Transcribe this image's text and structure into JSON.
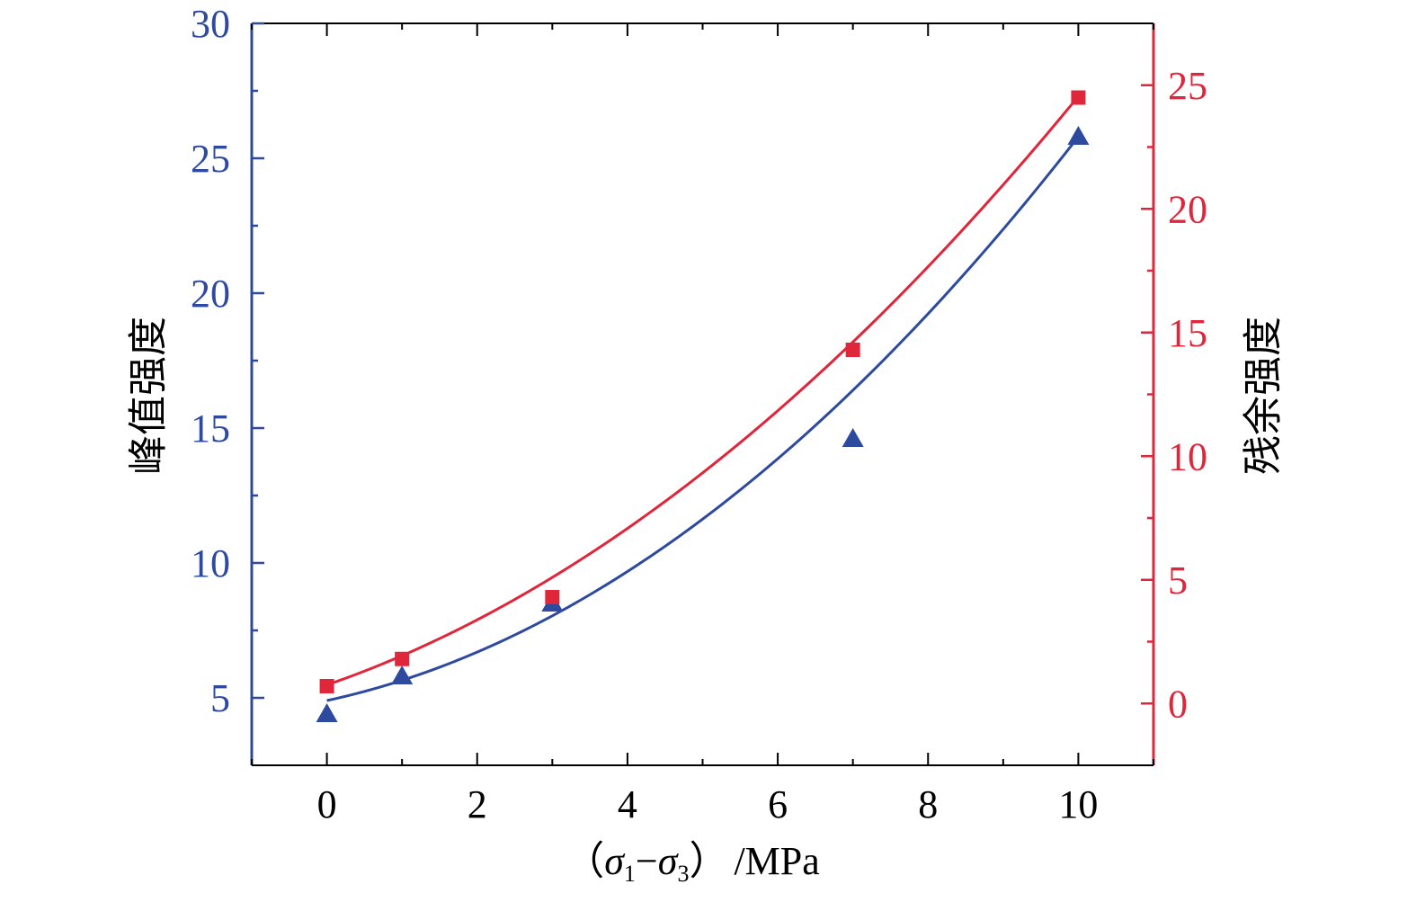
{
  "chart_data": {
    "type": "scatter",
    "x_axis": {
      "label_parts": {
        "open": "（",
        "sigma_a": "σ",
        "sub_a": "1",
        "minus": "−",
        "sigma_b": "σ",
        "sub_b": "3",
        "close": "）",
        "unit": "/MPa"
      },
      "range": [
        -1,
        11
      ],
      "ticks": [
        0,
        2,
        4,
        6,
        8,
        10
      ]
    },
    "y_left_axis": {
      "label": "峰值强度",
      "range": [
        2.5,
        30
      ],
      "ticks": [
        5,
        10,
        15,
        20,
        25,
        30
      ],
      "color": "#2e4a9e"
    },
    "y_right_axis": {
      "label": "残余强度",
      "range": [
        -2.5,
        27.5
      ],
      "ticks": [
        0,
        5,
        10,
        15,
        20,
        25
      ],
      "color": "#e0263a"
    },
    "series": [
      {
        "axis": "left",
        "marker": "triangle",
        "color": "#2e4a9e",
        "x": [
          0,
          1,
          3,
          7,
          10
        ],
        "y": [
          4.4,
          5.8,
          8.5,
          14.6,
          25.8
        ],
        "fit": {
          "type": "quadratic",
          "coefficients": [
            4.9,
            0.6,
            0.149
          ]
        }
      },
      {
        "axis": "right",
        "marker": "square",
        "color": "#e0263a",
        "x": [
          0,
          1,
          3,
          7,
          10
        ],
        "y": [
          0.7,
          1.8,
          4.3,
          14.3,
          24.5
        ],
        "fit": {
          "type": "quadratic",
          "coefficients": [
            0.75,
            1.05,
            0.133
          ]
        }
      }
    ]
  }
}
